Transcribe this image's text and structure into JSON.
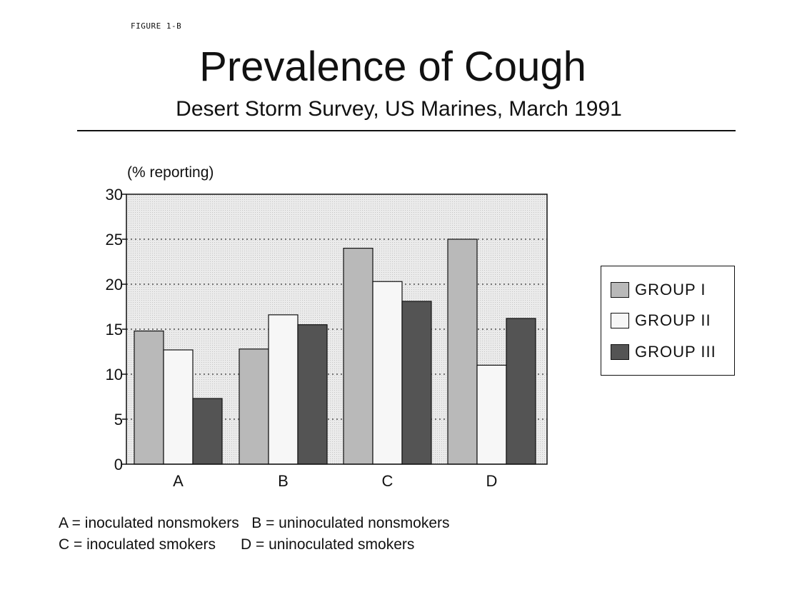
{
  "figure_label": "FIGURE 1-B",
  "colors": {
    "group_i": "#b9b9b9",
    "group_ii": "#f7f7f7",
    "group_iii": "#545454",
    "plot_background": "#ececec",
    "grid": "#333333"
  },
  "legend": {
    "items": [
      {
        "label": "GROUP I"
      },
      {
        "label": "GROUP II"
      },
      {
        "label": "GROUP III"
      }
    ]
  },
  "captions": {
    "line1": "A = inoculated nonsmokers   B = uninoculated nonsmokers",
    "line2": "C = inoculated smokers      D = uninoculated smokers"
  },
  "chart_data": {
    "type": "bar",
    "title": "Prevalence of Cough",
    "subtitle": "Desert Storm Survey, US Marines, March 1991",
    "ylabel": "(% reporting)",
    "xlabel": "",
    "categories": [
      "A",
      "B",
      "C",
      "D"
    ],
    "series": [
      {
        "name": "GROUP I",
        "values": [
          14.8,
          12.8,
          24.0,
          25.0
        ]
      },
      {
        "name": "GROUP II",
        "values": [
          12.7,
          16.6,
          20.3,
          11.0
        ]
      },
      {
        "name": "GROUP III",
        "values": [
          7.3,
          15.5,
          18.1,
          16.2
        ]
      }
    ],
    "ylim": [
      0,
      30
    ],
    "yticks": [
      "0",
      "5",
      "10",
      "15",
      "20",
      "25",
      "30"
    ],
    "grid": true,
    "legend_position": "right"
  }
}
